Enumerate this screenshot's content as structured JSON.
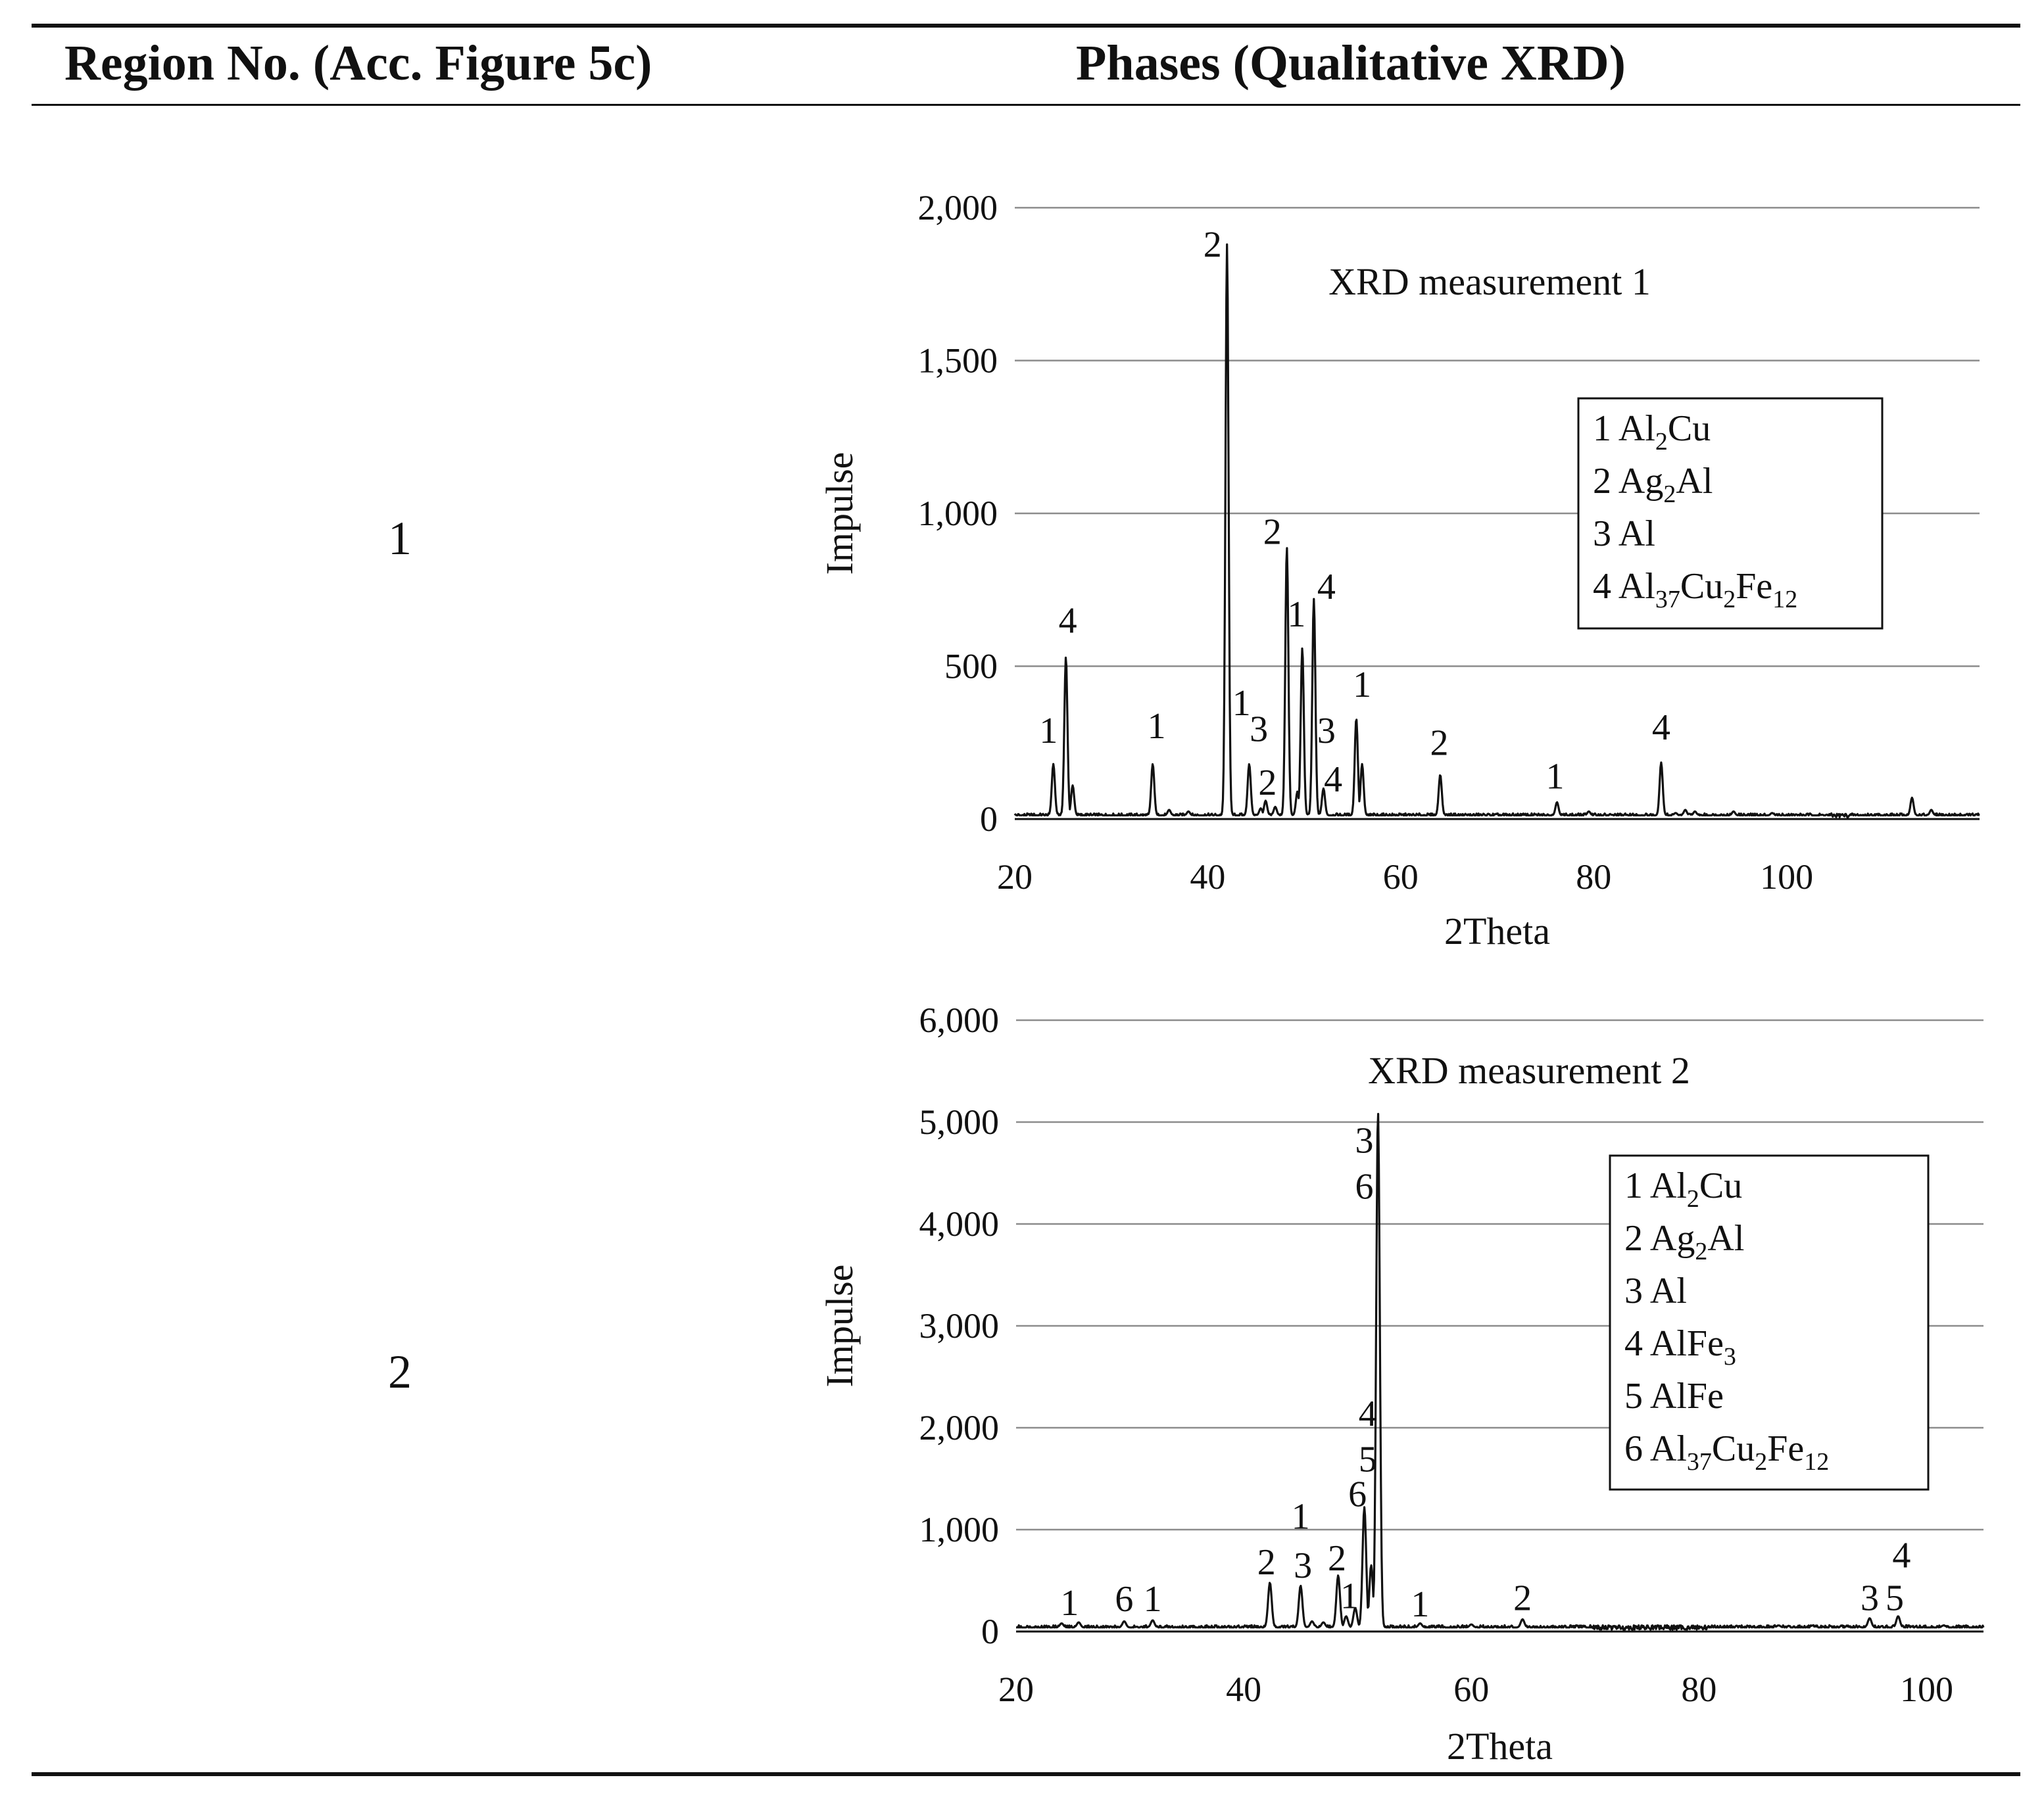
{
  "table": {
    "header": {
      "col1": "Region No. (Acc. Figure 5c)",
      "col2": "Phases (Qualitative XRD)"
    },
    "rows": [
      {
        "region": "1"
      },
      {
        "region": "2"
      }
    ]
  },
  "chart_data": [
    {
      "type": "line",
      "title": "XRD measurement 1",
      "xlabel": "2Theta",
      "ylabel": "Impulse",
      "xlim": [
        20,
        120
      ],
      "ylim": [
        0,
        2000
      ],
      "xticks": [
        20,
        40,
        60,
        80,
        100
      ],
      "xtick_labels": [
        "20",
        "40",
        "60",
        "80",
        "100"
      ],
      "yticks": [
        0,
        500,
        1000,
        1500,
        2000
      ],
      "ytick_labels": [
        "0",
        "500",
        "1,000",
        "1,500",
        "2,000"
      ],
      "grid": true,
      "legend_position": "top-right",
      "legend": [
        {
          "num": "1",
          "parts": [
            [
              "Al",
              ""
            ],
            [
              "2",
              "sub"
            ],
            [
              "Cu",
              ""
            ]
          ]
        },
        {
          "num": "2",
          "parts": [
            [
              "Ag",
              ""
            ],
            [
              "2",
              "sub"
            ],
            [
              "Al",
              ""
            ]
          ]
        },
        {
          "num": "3",
          "parts": [
            [
              "Al",
              ""
            ]
          ]
        },
        {
          "num": "4",
          "parts": [
            [
              "Al",
              ""
            ],
            [
              "37",
              "sub"
            ],
            [
              "Cu",
              ""
            ],
            [
              "2",
              "sub"
            ],
            [
              "Fe",
              ""
            ],
            [
              "12",
              "sub"
            ]
          ]
        }
      ],
      "baseline": 12,
      "peaks": [
        {
          "x": 24.0,
          "y": 180
        },
        {
          "x": 25.3,
          "y": 530
        },
        {
          "x": 26.0,
          "y": 110
        },
        {
          "x": 34.3,
          "y": 180
        },
        {
          "x": 36.0,
          "y": 30
        },
        {
          "x": 38.0,
          "y": 25
        },
        {
          "x": 42.0,
          "y": 1880
        },
        {
          "x": 44.3,
          "y": 180
        },
        {
          "x": 45.5,
          "y": 35
        },
        {
          "x": 46.0,
          "y": 60
        },
        {
          "x": 47.0,
          "y": 40
        },
        {
          "x": 48.2,
          "y": 890
        },
        {
          "x": 49.3,
          "y": 90
        },
        {
          "x": 49.8,
          "y": 560
        },
        {
          "x": 51.0,
          "y": 720
        },
        {
          "x": 52.0,
          "y": 100
        },
        {
          "x": 55.4,
          "y": 330
        },
        {
          "x": 56.0,
          "y": 180
        },
        {
          "x": 64.1,
          "y": 145
        },
        {
          "x": 76.2,
          "y": 55
        },
        {
          "x": 79.5,
          "y": 25
        },
        {
          "x": 87.0,
          "y": 185
        },
        {
          "x": 88.5,
          "y": 20
        },
        {
          "x": 89.5,
          "y": 30
        },
        {
          "x": 90.5,
          "y": 25
        },
        {
          "x": 94.5,
          "y": 25
        },
        {
          "x": 98.5,
          "y": 20
        },
        {
          "x": 113.0,
          "y": 70
        },
        {
          "x": 115.0,
          "y": 30
        }
      ],
      "peak_labels": [
        {
          "text": "1",
          "x": 23.5,
          "y": 250
        },
        {
          "text": "4",
          "x": 25.5,
          "y": 610
        },
        {
          "text": "1",
          "x": 34.7,
          "y": 265
        },
        {
          "text": "2",
          "x": 40.5,
          "y": 1840
        },
        {
          "text": "1",
          "x": 43.5,
          "y": 340
        },
        {
          "text": "3",
          "x": 45.3,
          "y": 255
        },
        {
          "text": "2",
          "x": 46.2,
          "y": 80
        },
        {
          "text": "2",
          "x": 46.7,
          "y": 900
        },
        {
          "text": "1",
          "x": 49.2,
          "y": 630
        },
        {
          "text": "4",
          "x": 52.3,
          "y": 720
        },
        {
          "text": "3",
          "x": 52.3,
          "y": 250
        },
        {
          "text": "4",
          "x": 53.0,
          "y": 90
        },
        {
          "text": "1",
          "x": 56.0,
          "y": 400
        },
        {
          "text": "2",
          "x": 64.0,
          "y": 210
        },
        {
          "text": "1",
          "x": 76.0,
          "y": 100
        },
        {
          "text": "4",
          "x": 87.0,
          "y": 260
        }
      ]
    },
    {
      "type": "line",
      "title": "XRD measurement 2",
      "xlabel": "2Theta",
      "ylabel": "Impulse",
      "xlim": [
        20,
        105
      ],
      "ylim": [
        0,
        6000
      ],
      "xticks": [
        20,
        40,
        60,
        80,
        100
      ],
      "xtick_labels": [
        "20",
        "40",
        "60",
        "80",
        "100"
      ],
      "yticks": [
        0,
        1000,
        2000,
        3000,
        4000,
        5000,
        6000
      ],
      "ytick_labels": [
        "0",
        "1,000",
        "2,000",
        "3,000",
        "4,000",
        "5,000",
        "6,000"
      ],
      "grid": true,
      "legend_position": "top-right",
      "legend": [
        {
          "num": "1",
          "parts": [
            [
              "Al",
              ""
            ],
            [
              "2",
              "sub"
            ],
            [
              "Cu",
              ""
            ]
          ]
        },
        {
          "num": "2",
          "parts": [
            [
              "Ag",
              ""
            ],
            [
              "2",
              "sub"
            ],
            [
              "Al",
              ""
            ]
          ]
        },
        {
          "num": "3",
          "parts": [
            [
              "Al",
              ""
            ]
          ]
        },
        {
          "num": "4",
          "parts": [
            [
              "AlFe",
              ""
            ],
            [
              "3",
              "sub"
            ]
          ]
        },
        {
          "num": "5",
          "parts": [
            [
              "AlFe",
              ""
            ]
          ]
        },
        {
          "num": "6",
          "parts": [
            [
              "Al",
              ""
            ],
            [
              "37",
              "sub"
            ],
            [
              "Cu",
              ""
            ],
            [
              "2",
              "sub"
            ],
            [
              "Fe",
              ""
            ],
            [
              "12",
              "sub"
            ]
          ]
        }
      ],
      "baseline": 40,
      "peaks": [
        {
          "x": 24.0,
          "y": 80
        },
        {
          "x": 25.5,
          "y": 90
        },
        {
          "x": 29.5,
          "y": 100
        },
        {
          "x": 32.0,
          "y": 110
        },
        {
          "x": 42.3,
          "y": 480
        },
        {
          "x": 45.0,
          "y": 450
        },
        {
          "x": 46.0,
          "y": 100
        },
        {
          "x": 47.0,
          "y": 90
        },
        {
          "x": 48.3,
          "y": 550
        },
        {
          "x": 49.0,
          "y": 150
        },
        {
          "x": 49.8,
          "y": 230
        },
        {
          "x": 50.6,
          "y": 1220
        },
        {
          "x": 51.2,
          "y": 650
        },
        {
          "x": 51.8,
          "y": 5100
        },
        {
          "x": 55.5,
          "y": 80
        },
        {
          "x": 60.0,
          "y": 70
        },
        {
          "x": 64.5,
          "y": 120
        },
        {
          "x": 87.0,
          "y": 60
        },
        {
          "x": 95.0,
          "y": 130
        },
        {
          "x": 97.5,
          "y": 150
        },
        {
          "x": 101.5,
          "y": 60
        }
      ],
      "peak_labels": [
        {
          "text": "1",
          "x": 24.7,
          "y": 160
        },
        {
          "text": "6",
          "x": 29.5,
          "y": 200
        },
        {
          "text": "1",
          "x": 32.0,
          "y": 200
        },
        {
          "text": "2",
          "x": 42.0,
          "y": 560
        },
        {
          "text": "1",
          "x": 45.0,
          "y": 1010
        },
        {
          "text": "3",
          "x": 45.2,
          "y": 530
        },
        {
          "text": "2",
          "x": 48.2,
          "y": 600
        },
        {
          "text": "1",
          "x": 49.3,
          "y": 230
        },
        {
          "text": "6",
          "x": 50.0,
          "y": 1230
        },
        {
          "text": "5",
          "x": 50.9,
          "y": 1570
        },
        {
          "text": "4",
          "x": 50.9,
          "y": 2020
        },
        {
          "text": "6",
          "x": 50.6,
          "y": 4250
        },
        {
          "text": "3",
          "x": 50.6,
          "y": 4700
        },
        {
          "text": "1",
          "x": 55.5,
          "y": 150
        },
        {
          "text": "2",
          "x": 64.5,
          "y": 210
        },
        {
          "text": "3",
          "x": 95.0,
          "y": 210
        },
        {
          "text": "5",
          "x": 97.2,
          "y": 210
        },
        {
          "text": "4",
          "x": 97.8,
          "y": 630
        }
      ]
    }
  ]
}
